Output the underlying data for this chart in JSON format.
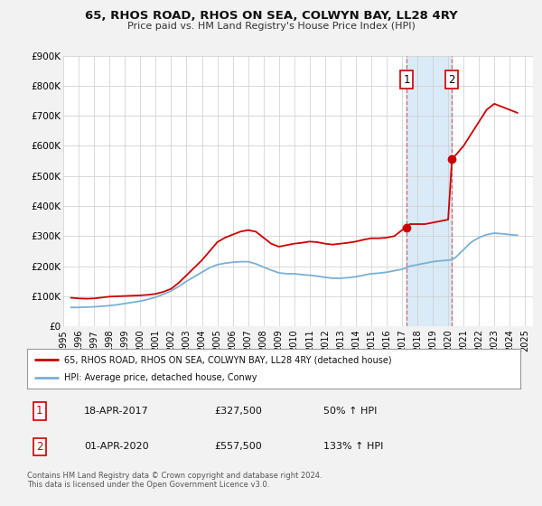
{
  "title": "65, RHOS ROAD, RHOS ON SEA, COLWYN BAY, LL28 4RY",
  "subtitle": "Price paid vs. HM Land Registry's House Price Index (HPI)",
  "bg_color": "#f2f2f2",
  "plot_bg_color": "#ffffff",
  "grid_color": "#cccccc",
  "ylim": [
    0,
    900000
  ],
  "yticks": [
    0,
    100000,
    200000,
    300000,
    400000,
    500000,
    600000,
    700000,
    800000,
    900000
  ],
  "ytick_labels": [
    "£0",
    "£100K",
    "£200K",
    "£300K",
    "£400K",
    "£500K",
    "£600K",
    "£700K",
    "£800K",
    "£900K"
  ],
  "xlim_start": 1995.0,
  "xlim_end": 2025.5,
  "xticks": [
    1995,
    1996,
    1997,
    1998,
    1999,
    2000,
    2001,
    2002,
    2003,
    2004,
    2005,
    2006,
    2007,
    2008,
    2009,
    2010,
    2011,
    2012,
    2013,
    2014,
    2015,
    2016,
    2017,
    2018,
    2019,
    2020,
    2021,
    2022,
    2023,
    2024,
    2025
  ],
  "red_line_color": "#cc0000",
  "blue_line_color": "#7ab0d4",
  "marker1_x": 2017.29,
  "marker1_y": 327500,
  "marker2_x": 2020.25,
  "marker2_y": 557500,
  "vline1_x": 2017.29,
  "vline2_x": 2020.25,
  "shade_x1": 2017.29,
  "shade_x2": 2020.25,
  "shade_color": "#daeaf7",
  "legend_label_red": "65, RHOS ROAD, RHOS ON SEA, COLWYN BAY, LL28 4RY (detached house)",
  "legend_label_blue": "HPI: Average price, detached house, Conwy",
  "table_row1": [
    "1",
    "18-APR-2017",
    "£327,500",
    "50% ↑ HPI"
  ],
  "table_row2": [
    "2",
    "01-APR-2020",
    "£557,500",
    "133% ↑ HPI"
  ],
  "footer": "Contains HM Land Registry data © Crown copyright and database right 2024.\nThis data is licensed under the Open Government Licence v3.0.",
  "red_x": [
    1995.5,
    1996.0,
    1996.5,
    1997.0,
    1997.5,
    1998.0,
    1998.5,
    1999.0,
    1999.5,
    2000.0,
    2000.5,
    2001.0,
    2001.5,
    2002.0,
    2002.5,
    2003.0,
    2003.5,
    2004.0,
    2004.5,
    2005.0,
    2005.5,
    2006.0,
    2006.5,
    2007.0,
    2007.5,
    2008.0,
    2008.5,
    2009.0,
    2009.5,
    2010.0,
    2010.5,
    2011.0,
    2011.5,
    2012.0,
    2012.5,
    2013.0,
    2013.5,
    2014.0,
    2014.5,
    2015.0,
    2015.5,
    2016.0,
    2016.5,
    2017.0,
    2017.29,
    2017.5,
    2018.0,
    2018.5,
    2019.0,
    2019.5,
    2020.0,
    2020.25,
    2020.5,
    2021.0,
    2021.5,
    2022.0,
    2022.5,
    2023.0,
    2023.5,
    2024.0,
    2024.5
  ],
  "red_y": [
    95000,
    93000,
    92000,
    93000,
    96000,
    99000,
    100000,
    101000,
    102000,
    103000,
    105000,
    108000,
    115000,
    125000,
    145000,
    170000,
    195000,
    220000,
    250000,
    280000,
    295000,
    305000,
    315000,
    320000,
    315000,
    295000,
    275000,
    265000,
    270000,
    275000,
    278000,
    282000,
    280000,
    275000,
    272000,
    275000,
    278000,
    282000,
    288000,
    293000,
    293000,
    295000,
    300000,
    320000,
    327500,
    340000,
    340000,
    340000,
    345000,
    350000,
    355000,
    557500,
    570000,
    600000,
    640000,
    680000,
    720000,
    740000,
    730000,
    720000,
    710000
  ],
  "blue_x": [
    1995.5,
    1996.0,
    1996.5,
    1997.0,
    1997.5,
    1998.0,
    1998.5,
    1999.0,
    1999.5,
    2000.0,
    2000.5,
    2001.0,
    2001.5,
    2002.0,
    2002.5,
    2003.0,
    2003.5,
    2004.0,
    2004.5,
    2005.0,
    2005.5,
    2006.0,
    2006.5,
    2007.0,
    2007.5,
    2008.0,
    2008.5,
    2009.0,
    2009.5,
    2010.0,
    2010.5,
    2011.0,
    2011.5,
    2012.0,
    2012.5,
    2013.0,
    2013.5,
    2014.0,
    2014.5,
    2015.0,
    2015.5,
    2016.0,
    2016.5,
    2017.0,
    2017.29,
    2017.5,
    2018.0,
    2018.5,
    2019.0,
    2019.5,
    2020.0,
    2020.25,
    2020.5,
    2021.0,
    2021.5,
    2022.0,
    2022.5,
    2023.0,
    2023.5,
    2024.0,
    2024.5
  ],
  "blue_y": [
    63000,
    63000,
    64000,
    65000,
    67000,
    69000,
    72000,
    76000,
    80000,
    84000,
    90000,
    97000,
    107000,
    118000,
    133000,
    150000,
    165000,
    180000,
    195000,
    205000,
    210000,
    213000,
    215000,
    215000,
    208000,
    197000,
    187000,
    178000,
    175000,
    175000,
    172000,
    170000,
    167000,
    163000,
    160000,
    160000,
    162000,
    165000,
    170000,
    175000,
    177000,
    180000,
    185000,
    190000,
    195000,
    200000,
    205000,
    210000,
    215000,
    218000,
    220000,
    222000,
    230000,
    255000,
    280000,
    295000,
    305000,
    310000,
    308000,
    305000,
    303000
  ]
}
